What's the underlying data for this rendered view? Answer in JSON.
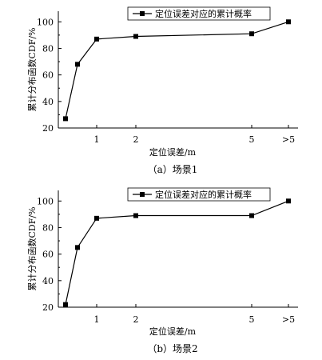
{
  "chart_data": [
    {
      "type": "line",
      "caption": "（a）场景1",
      "ylabel": "累计分布函数CDF/%",
      "xlabel": "定位误差/m",
      "x_tick_labels": [
        "1",
        "2",
        "5",
        ">5"
      ],
      "y_tick_labels": [
        "20",
        "40",
        "60",
        "80",
        "100"
      ],
      "ylim": [
        20,
        108
      ],
      "series": [
        {
          "name": "定位误差对应的累计概率",
          "marker": "square",
          "color": "#000000",
          "points": [
            {
              "x": 0.1,
              "y": 27
            },
            {
              "x": 0.5,
              "y": 68
            },
            {
              "x": 1,
              "y": 87
            },
            {
              "x": 2,
              "y": 89
            },
            {
              "x": 5,
              "y": 91
            },
            {
              "x": ">5",
              "y": 100
            }
          ]
        }
      ],
      "legend": "top-center"
    },
    {
      "type": "line",
      "caption": "（b）场景2",
      "ylabel": "累计分布函数CDF/%",
      "xlabel": "定位误差/m",
      "x_tick_labels": [
        "1",
        "2",
        "5",
        ">5"
      ],
      "y_tick_labels": [
        "20",
        "40",
        "60",
        "80",
        "100"
      ],
      "ylim": [
        20,
        108
      ],
      "series": [
        {
          "name": "定位误差对应的累计概率",
          "marker": "square",
          "color": "#000000",
          "points": [
            {
              "x": 0.1,
              "y": 22
            },
            {
              "x": 0.5,
              "y": 65
            },
            {
              "x": 1,
              "y": 87
            },
            {
              "x": 2,
              "y": 89
            },
            {
              "x": 5,
              "y": 89
            },
            {
              "x": ">5",
              "y": 100
            }
          ]
        }
      ],
      "legend": "top-center"
    }
  ]
}
